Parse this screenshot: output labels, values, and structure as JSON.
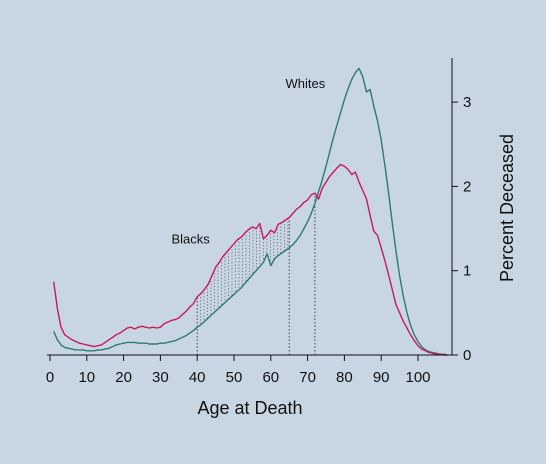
{
  "chart_data": {
    "type": "line",
    "title": "",
    "xlabel": "Age at Death",
    "ylabel": "Percent Deceased",
    "xlim": [
      0,
      110
    ],
    "ylim": [
      0,
      3.5
    ],
    "xticks": [
      0,
      10,
      20,
      30,
      40,
      50,
      60,
      70,
      80,
      90,
      100
    ],
    "yticks": [
      0,
      1,
      2,
      3
    ],
    "grid": false,
    "legend": "none",
    "series": [
      {
        "name": "Blacks",
        "color": "#c8195a",
        "x": [
          1,
          2,
          3,
          4,
          5,
          6,
          7,
          8,
          9,
          10,
          11,
          12,
          13,
          14,
          15,
          16,
          17,
          18,
          19,
          20,
          21,
          22,
          23,
          24,
          25,
          26,
          27,
          28,
          29,
          30,
          31,
          32,
          33,
          34,
          35,
          36,
          37,
          38,
          39,
          40,
          41,
          42,
          43,
          44,
          45,
          46,
          47,
          48,
          49,
          50,
          51,
          52,
          53,
          54,
          55,
          56,
          57,
          58,
          59,
          60,
          61,
          62,
          63,
          64,
          65,
          66,
          67,
          68,
          69,
          70,
          71,
          72,
          73,
          74,
          75,
          76,
          77,
          78,
          79,
          80,
          81,
          82,
          83,
          84,
          85,
          86,
          87,
          88,
          89,
          90,
          91,
          92,
          93,
          94,
          95,
          96,
          97,
          98,
          99,
          100,
          101,
          102,
          103,
          104,
          105,
          106,
          107,
          108
        ],
        "values": [
          0.87,
          0.55,
          0.33,
          0.24,
          0.21,
          0.18,
          0.16,
          0.14,
          0.13,
          0.12,
          0.11,
          0.1,
          0.11,
          0.12,
          0.15,
          0.18,
          0.21,
          0.24,
          0.26,
          0.29,
          0.32,
          0.33,
          0.31,
          0.33,
          0.34,
          0.33,
          0.32,
          0.33,
          0.32,
          0.33,
          0.37,
          0.39,
          0.41,
          0.42,
          0.44,
          0.48,
          0.52,
          0.57,
          0.61,
          0.69,
          0.73,
          0.78,
          0.84,
          0.94,
          1.04,
          1.1,
          1.17,
          1.22,
          1.27,
          1.32,
          1.37,
          1.4,
          1.45,
          1.49,
          1.52,
          1.5,
          1.56,
          1.38,
          1.42,
          1.48,
          1.45,
          1.55,
          1.57,
          1.6,
          1.63,
          1.68,
          1.73,
          1.76,
          1.81,
          1.84,
          1.9,
          1.92,
          1.85,
          1.98,
          2.05,
          2.12,
          2.17,
          2.22,
          2.26,
          2.24,
          2.2,
          2.14,
          2.17,
          2.05,
          1.95,
          1.85,
          1.65,
          1.47,
          1.42,
          1.27,
          1.12,
          0.95,
          0.78,
          0.6,
          0.5,
          0.4,
          0.32,
          0.24,
          0.17,
          0.11,
          0.07,
          0.05,
          0.03,
          0.02,
          0.01,
          0.01,
          0.0,
          0.0
        ]
      },
      {
        "name": "Whites",
        "color": "#2e7a6e",
        "x": [
          1,
          2,
          3,
          4,
          5,
          6,
          7,
          8,
          9,
          10,
          11,
          12,
          13,
          14,
          15,
          16,
          17,
          18,
          19,
          20,
          21,
          22,
          23,
          24,
          25,
          26,
          27,
          28,
          29,
          30,
          31,
          32,
          33,
          34,
          35,
          36,
          37,
          38,
          39,
          40,
          41,
          42,
          43,
          44,
          45,
          46,
          47,
          48,
          49,
          50,
          51,
          52,
          53,
          54,
          55,
          56,
          57,
          58,
          59,
          60,
          61,
          62,
          63,
          64,
          65,
          66,
          67,
          68,
          69,
          70,
          71,
          72,
          73,
          74,
          75,
          76,
          77,
          78,
          79,
          80,
          81,
          82,
          83,
          84,
          85,
          86,
          87,
          88,
          89,
          90,
          91,
          92,
          93,
          94,
          95,
          96,
          97,
          98,
          99,
          100,
          101,
          102,
          103,
          104,
          105,
          106,
          107,
          108
        ],
        "values": [
          0.28,
          0.18,
          0.12,
          0.09,
          0.08,
          0.07,
          0.06,
          0.06,
          0.06,
          0.05,
          0.05,
          0.05,
          0.06,
          0.06,
          0.07,
          0.08,
          0.1,
          0.12,
          0.13,
          0.14,
          0.15,
          0.15,
          0.15,
          0.14,
          0.14,
          0.14,
          0.13,
          0.13,
          0.13,
          0.14,
          0.14,
          0.15,
          0.16,
          0.17,
          0.19,
          0.21,
          0.23,
          0.26,
          0.29,
          0.33,
          0.36,
          0.4,
          0.44,
          0.48,
          0.52,
          0.56,
          0.6,
          0.64,
          0.68,
          0.72,
          0.76,
          0.8,
          0.85,
          0.9,
          0.95,
          1.0,
          1.05,
          1.1,
          1.2,
          1.06,
          1.14,
          1.18,
          1.21,
          1.24,
          1.27,
          1.31,
          1.36,
          1.42,
          1.5,
          1.58,
          1.68,
          1.8,
          1.94,
          2.08,
          2.24,
          2.41,
          2.58,
          2.73,
          2.88,
          3.03,
          3.16,
          3.27,
          3.35,
          3.4,
          3.3,
          3.12,
          3.15,
          2.95,
          2.78,
          2.55,
          2.25,
          1.92,
          1.57,
          1.24,
          0.94,
          0.7,
          0.5,
          0.35,
          0.24,
          0.16,
          0.1,
          0.06,
          0.04,
          0.03,
          0.02,
          0.01,
          0.01,
          0.0
        ]
      }
    ],
    "annotations": [
      {
        "text": "Whites",
        "x": 64,
        "y": 3.17
      },
      {
        "text": "Blacks",
        "x": 33,
        "y": 1.32
      }
    ],
    "shaded_region": {
      "x_start": 40,
      "x_end": 65
    },
    "reference_lines_x": [
      40,
      65,
      72
    ]
  }
}
